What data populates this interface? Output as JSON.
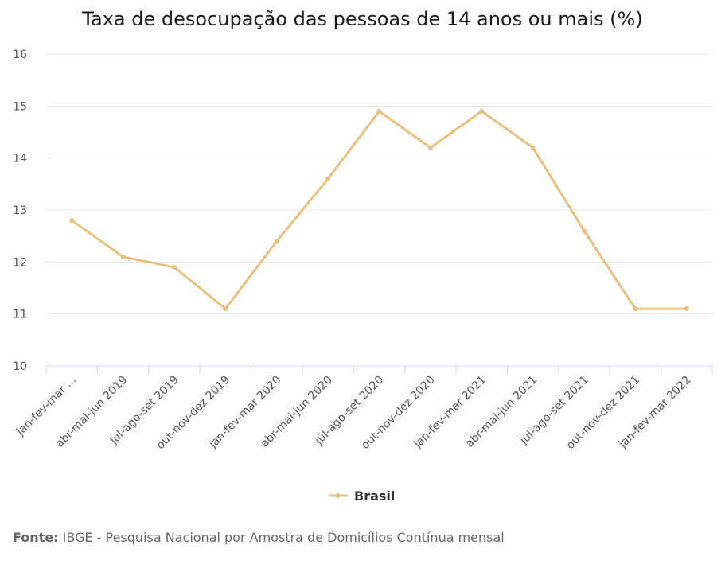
{
  "chart_data": {
    "type": "line",
    "title": "Taxa de desocupação das pessoas de 14 anos ou mais (%)",
    "categories": [
      "jan-fev-mar ...",
      "abr-mai-jun 2019",
      "jul-ago-set 2019",
      "out-nov-dez 2019",
      "jan-fev-mar 2020",
      "abr-mai-jun 2020",
      "jul-ago-set 2020",
      "out-nov-dez 2020",
      "jan-fev-mar 2021",
      "abr-mai-jun 2021",
      "jul-ago-set 2021",
      "out-nov-dez 2021",
      "jan-fev-mar 2022"
    ],
    "series": [
      {
        "name": "Brasil",
        "values": [
          12.8,
          12.1,
          11.9,
          11.1,
          12.4,
          13.6,
          14.9,
          14.2,
          14.9,
          14.2,
          12.6,
          11.1,
          11.1
        ]
      }
    ],
    "yticks": [
      "10",
      "11",
      "12",
      "13",
      "14",
      "15",
      "16"
    ],
    "ylim": [
      10,
      16
    ],
    "grid": true,
    "legend_position": "bottom-center",
    "color": "#e8c07d"
  },
  "source": {
    "label": "Fonte:",
    "text": " IBGE - Pesquisa Nacional por Amostra de Domicílios Contínua mensal"
  }
}
